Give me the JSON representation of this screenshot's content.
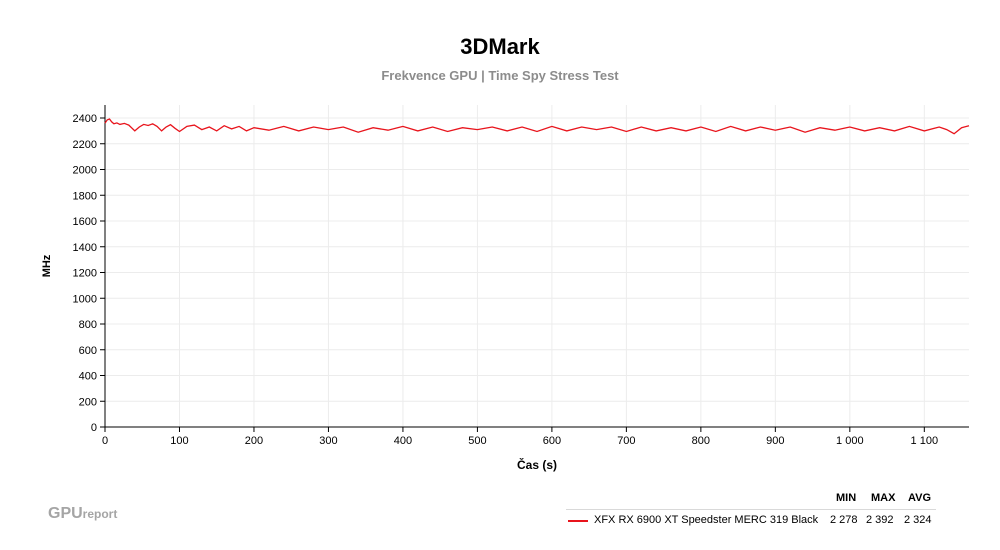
{
  "chart_data": {
    "type": "line",
    "title": "3DMark",
    "subtitle": "Frekvence GPU | Time Spy Stress Test",
    "xlabel": "Čas (s)",
    "ylabel": "MHz",
    "xlim": [
      0,
      1160
    ],
    "ylim": [
      0,
      2400
    ],
    "xticks": [
      0,
      100,
      200,
      300,
      400,
      500,
      600,
      700,
      800,
      900,
      1000,
      1100
    ],
    "xtick_labels": [
      "0",
      "100",
      "200",
      "300",
      "400",
      "500",
      "600",
      "700",
      "800",
      "900",
      "1 000",
      "1 100"
    ],
    "yticks": [
      0,
      200,
      400,
      600,
      800,
      1000,
      1200,
      1400,
      1600,
      1800,
      2000,
      2200,
      2400
    ],
    "ytick_labels": [
      "0",
      "200",
      "400",
      "600",
      "800",
      "1000",
      "1200",
      "1400",
      "1600",
      "1800",
      "2000",
      "2200",
      "2400"
    ],
    "grid": true,
    "series": [
      {
        "name": "XFX RX 6900 XT Speedster MERC 319 Black",
        "color": "#e8141c",
        "x": [
          0,
          3,
          6,
          9,
          12,
          16,
          20,
          26,
          32,
          40,
          46,
          52,
          58,
          64,
          70,
          76,
          82,
          88,
          94,
          100,
          110,
          120,
          130,
          140,
          150,
          160,
          170,
          180,
          190,
          200,
          220,
          240,
          260,
          280,
          300,
          320,
          340,
          360,
          380,
          400,
          420,
          440,
          460,
          480,
          500,
          520,
          540,
          560,
          580,
          600,
          620,
          640,
          660,
          680,
          700,
          720,
          740,
          760,
          780,
          800,
          820,
          840,
          860,
          880,
          900,
          920,
          940,
          960,
          980,
          1000,
          1020,
          1040,
          1060,
          1080,
          1100,
          1120,
          1130,
          1140,
          1150,
          1160
        ],
        "y": [
          2360,
          2385,
          2392,
          2370,
          2355,
          2362,
          2350,
          2358,
          2345,
          2300,
          2330,
          2350,
          2342,
          2355,
          2335,
          2300,
          2330,
          2348,
          2320,
          2295,
          2335,
          2345,
          2310,
          2330,
          2300,
          2340,
          2315,
          2335,
          2300,
          2325,
          2305,
          2335,
          2300,
          2330,
          2310,
          2330,
          2290,
          2325,
          2305,
          2335,
          2300,
          2330,
          2295,
          2325,
          2310,
          2330,
          2300,
          2330,
          2295,
          2335,
          2300,
          2330,
          2310,
          2330,
          2295,
          2330,
          2300,
          2325,
          2300,
          2330,
          2295,
          2335,
          2300,
          2330,
          2305,
          2330,
          2290,
          2325,
          2305,
          2330,
          2300,
          2325,
          2300,
          2335,
          2300,
          2330,
          2310,
          2278,
          2325,
          2340
        ]
      }
    ]
  },
  "stats": {
    "headers": [
      "MIN",
      "MAX",
      "AVG"
    ],
    "row": {
      "name": "XFX RX 6900 XT Speedster MERC 319 Black",
      "min": "2 278",
      "max": "2 392",
      "avg": "2 324"
    }
  },
  "watermark": {
    "gpu": "GPU",
    "report": "report"
  }
}
